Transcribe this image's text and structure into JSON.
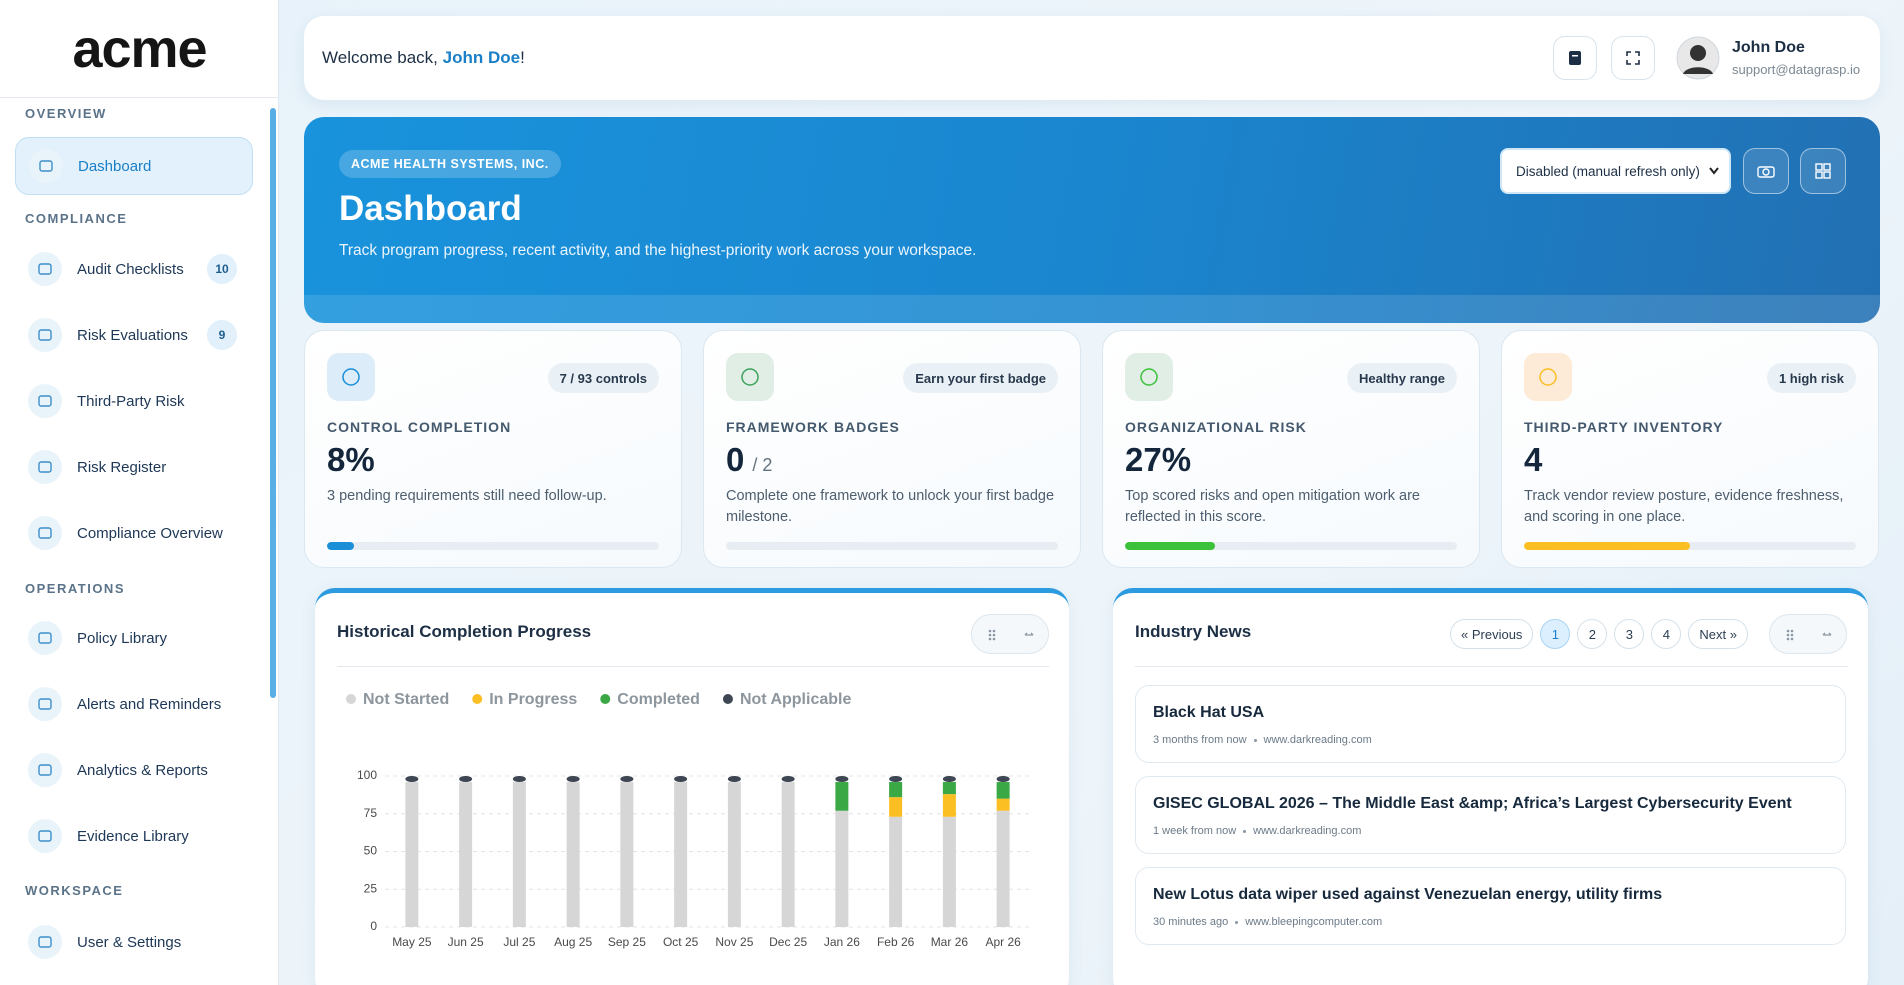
{
  "sidebar": {
    "logo": "acme",
    "sections": [
      {
        "title": "OVERVIEW",
        "items": [
          {
            "label": "Dashboard"
          }
        ]
      },
      {
        "title": "COMPLIANCE",
        "items": [
          {
            "label": "Audit Checklists",
            "badge": "10"
          },
          {
            "label": "Risk Evaluations",
            "badge": "9"
          },
          {
            "label": "Third-Party Risk"
          },
          {
            "label": "Risk Register"
          },
          {
            "label": "Compliance Overview"
          }
        ]
      },
      {
        "title": "OPERATIONS",
        "items": [
          {
            "label": "Policy Library"
          },
          {
            "label": "Alerts and Reminders"
          },
          {
            "label": "Analytics & Reports"
          },
          {
            "label": "Evidence Library"
          }
        ]
      },
      {
        "title": "WORKSPACE",
        "items": [
          {
            "label": "User & Settings"
          }
        ]
      }
    ]
  },
  "header": {
    "greeting": "Welcome back, ",
    "greeting_name": "John Doe",
    "greeting_end": "!",
    "user_name": "John Doe",
    "user_email": "support@datagrasp.io"
  },
  "hero": {
    "org": "ACME HEALTH SYSTEMS, INC.",
    "title": "Dashboard",
    "subtitle": "Track program progress, recent activity, and the highest-priority work across your workspace.",
    "refresh": "Disabled (manual refresh only)"
  },
  "cards": [
    {
      "badge": "7 / 93 controls",
      "title": "CONTROL COMPLETION",
      "value": "8%",
      "note": "3 pending requirements still need follow-up.",
      "progress": 8,
      "color": "#1a8fd8",
      "icon_bg": "#dcedf9"
    },
    {
      "badge": "Earn your first badge",
      "title": "FRAMEWORK BADGES",
      "value": "0",
      "value_suffix": "/ 2",
      "note": "Complete one framework to unlock your first badge milestone.",
      "progress": 0,
      "color": "#3aa35b",
      "icon_bg": "#e1eee6"
    },
    {
      "badge": "Healthy range",
      "title": "ORGANIZATIONAL RISK",
      "value": "27%",
      "note": "Top scored risks and open mitigation work are reflected in this score.",
      "progress": 27,
      "color": "#3cc13b",
      "icon_bg": "#e1eee6"
    },
    {
      "badge": "1 high risk",
      "title": "THIRD-PARTY INVENTORY",
      "value": "4",
      "note": "Track vendor review posture, evidence freshness, and scoring in one place.",
      "progress": 50,
      "color": "#fbbf24",
      "icon_bg": "#fdebd8"
    }
  ],
  "chart_data": {
    "type": "bar",
    "stacked": true,
    "title": "Historical Completion Progress",
    "categories": [
      "May 25",
      "Jun 25",
      "Jul 25",
      "Aug 25",
      "Sep 25",
      "Oct 25",
      "Nov 25",
      "Dec 25",
      "Jan 26",
      "Feb 26",
      "Mar 26",
      "Apr 26"
    ],
    "series": [
      {
        "name": "Not Started",
        "color": "#d6d6d6",
        "values": [
          96,
          96,
          96,
          96,
          96,
          96,
          96,
          96,
          77,
          73,
          73,
          77
        ]
      },
      {
        "name": "In Progress",
        "color": "#fbbf24",
        "values": [
          0,
          0,
          0,
          0,
          0,
          0,
          0,
          0,
          0,
          13,
          15,
          8
        ]
      },
      {
        "name": "Completed",
        "color": "#3aa845",
        "values": [
          0,
          0,
          0,
          0,
          0,
          0,
          0,
          0,
          19,
          10,
          8,
          11
        ]
      },
      {
        "name": "Not Applicable",
        "color": "#3d4652",
        "values": [
          4,
          4,
          4,
          4,
          4,
          4,
          4,
          4,
          4,
          4,
          4,
          4
        ]
      }
    ],
    "ylim": [
      0,
      100
    ],
    "yticks": [
      0,
      25,
      50,
      75,
      100
    ],
    "grid": true
  },
  "news": {
    "title": "Industry News",
    "pagination": [
      "« Previous",
      "1",
      "2",
      "3",
      "4",
      "Next »"
    ],
    "items": [
      {
        "title": "Black Hat USA",
        "time": "3 months from now",
        "source": "www.darkreading.com"
      },
      {
        "title": "GISEC GLOBAL 2026 – The Middle East &amp; Africa’s Largest Cybersecurity Event",
        "time": "1 week from now",
        "source": "www.darkreading.com"
      },
      {
        "title": "New Lotus data wiper used against Venezuelan energy, utility firms",
        "time": "30 minutes ago",
        "source": "www.bleepingcomputer.com"
      }
    ]
  }
}
